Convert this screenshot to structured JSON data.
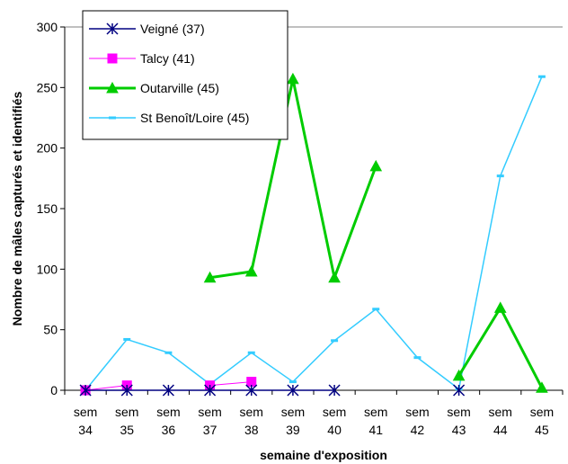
{
  "chart_data": {
    "type": "line",
    "xlabel": "semaine d'exposition",
    "ylabel": "Nombre de mâles capturés et identifiés",
    "ylim": [
      0,
      300
    ],
    "yticks": [
      0,
      50,
      100,
      150,
      200,
      250,
      300
    ],
    "grid": "top border line only",
    "legend_position": "top-left",
    "categories": [
      [
        "sem",
        "34"
      ],
      [
        "sem",
        "35"
      ],
      [
        "sem",
        "36"
      ],
      [
        "sem",
        "37"
      ],
      [
        "sem",
        "38"
      ],
      [
        "sem",
        "39"
      ],
      [
        "sem",
        "40"
      ],
      [
        "sem",
        "41"
      ],
      [
        "sem",
        "42"
      ],
      [
        "sem",
        "43"
      ],
      [
        "sem",
        "44"
      ],
      [
        "sem",
        "45"
      ]
    ],
    "series": [
      {
        "name": "Veigné (37)",
        "color": "#000080",
        "marker": "asterisk",
        "values": [
          0,
          0,
          0,
          0,
          0,
          0,
          0,
          null,
          null,
          0,
          null,
          null
        ]
      },
      {
        "name": "Talcy (41)",
        "color": "#FF00FF",
        "marker": "square",
        "values": [
          0,
          4,
          null,
          4,
          7,
          null,
          null,
          null,
          null,
          null,
          null,
          null
        ]
      },
      {
        "name": "Outarville (45)",
        "color": "#00CC00",
        "marker": "triangle",
        "values": [
          null,
          null,
          null,
          93,
          98,
          257,
          93,
          185,
          null,
          12,
          68,
          2
        ]
      },
      {
        "name": "St Benoît/Loire (45)",
        "color": "#33CCFF",
        "marker": "dash",
        "values": [
          0,
          42,
          31,
          5,
          31,
          7,
          41,
          67,
          27,
          1,
          177,
          259
        ]
      }
    ]
  }
}
